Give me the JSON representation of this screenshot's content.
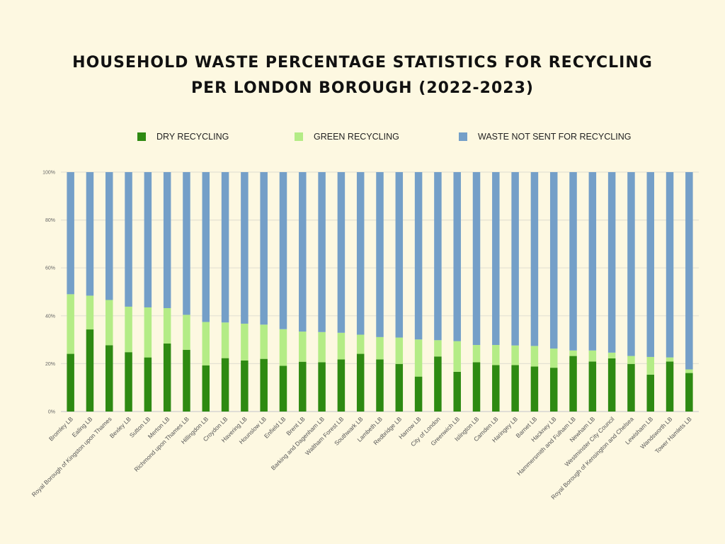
{
  "chart_data": {
    "type": "bar",
    "stacked": true,
    "title_lines": [
      "HOUSEHOLD WASTE PERCENTAGE STATISTICS FOR RECYCLING",
      "PER LONDON BOROUGH (2022-2023)"
    ],
    "ylim": [
      0,
      100
    ],
    "yticks": [
      "0%",
      "20%",
      "40%",
      "60%",
      "80%",
      "100%"
    ],
    "grid": true,
    "legend_position": "top",
    "categories": [
      "Bromley LB",
      "Ealing LB",
      "Royal Borough of Kingston upon Thames",
      "Bexley LB",
      "Sutton LB",
      "Merton LB",
      "Richmond upon Thames LB",
      "Hillingdon LB",
      "Croydon LB",
      "Havering LB",
      "Hounslow LB",
      "Enfield LB",
      "Brent LB",
      "Barking and Dagenham LB",
      "Waltham Forest LB",
      "Southwark LB",
      "Lambeth LB",
      "Redbridge LB",
      "Harrow LB",
      "City of London",
      "Greenwich LB",
      "Islington LB",
      "Camden LB",
      "Haringey LB",
      "Barnet LB",
      "Hackney LB",
      "Hammersmith and Fulham LB",
      "Newham LB",
      "Westminster City Council",
      "Royal Borough of Kensington and Chelsea",
      "Lewisham LB",
      "Wandsworth LB",
      "Tower Hamlets LB"
    ],
    "series": [
      {
        "name": "DRY RECYCLING",
        "color": "#2e8a12",
        "values": [
          24.1,
          34.3,
          27.7,
          24.8,
          22.6,
          28.4,
          25.8,
          19.3,
          22.3,
          21.3,
          22.0,
          19.1,
          20.8,
          20.6,
          21.8,
          24.1,
          21.8,
          19.9,
          14.6,
          23.0,
          16.6,
          20.6,
          19.4,
          19.4,
          18.8,
          18.3,
          23.2,
          20.9,
          22.2,
          19.9,
          15.4,
          20.9,
          16.1
        ]
      },
      {
        "name": "GREEN RECYCLING",
        "color": "#b4ec86",
        "values": [
          24.9,
          14.1,
          18.9,
          19.0,
          20.9,
          14.8,
          14.6,
          18.1,
          14.9,
          15.4,
          14.3,
          15.3,
          12.6,
          12.6,
          11.1,
          8.0,
          9.3,
          11.0,
          15.5,
          6.8,
          12.8,
          7.2,
          8.4,
          8.2,
          8.6,
          8.0,
          2.3,
          4.6,
          2.4,
          3.3,
          7.4,
          1.7,
          1.5
        ]
      },
      {
        "name": "WASTE NOT SENT FOR RECYCLING",
        "color": "#749fc8",
        "values": [
          51.0,
          51.6,
          53.4,
          56.2,
          56.5,
          56.8,
          59.6,
          62.6,
          62.8,
          63.3,
          63.7,
          65.6,
          66.6,
          66.8,
          67.1,
          67.9,
          68.9,
          69.1,
          69.9,
          70.2,
          70.6,
          72.2,
          72.2,
          72.4,
          72.6,
          73.7,
          74.5,
          74.5,
          75.4,
          76.8,
          77.2,
          77.4,
          82.4
        ]
      }
    ]
  }
}
